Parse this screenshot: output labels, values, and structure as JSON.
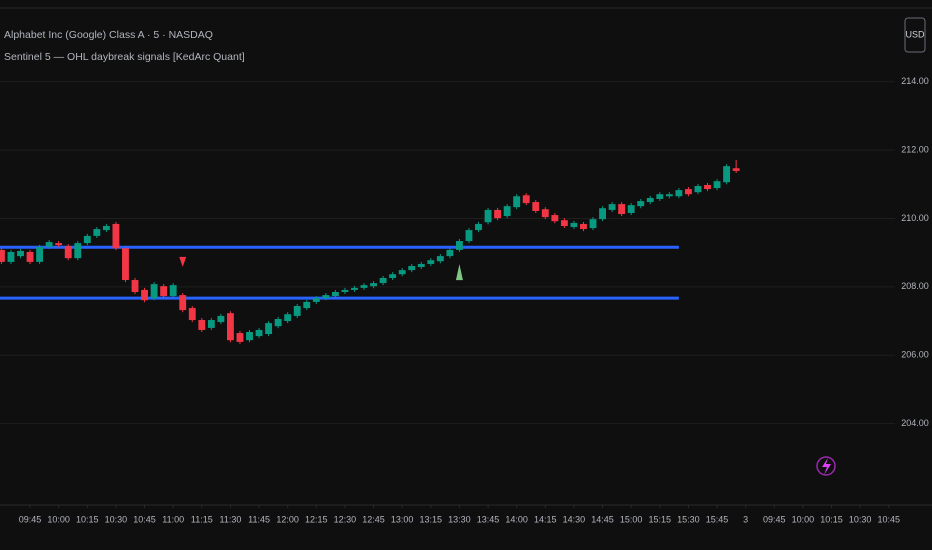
{
  "header": {
    "symbol": "Alphabet Inc (Google) Class A · 5 · NASDAQ",
    "indicator": "Sentinel 5 — OHL daybreak signals [KedArc Quant]",
    "currency": "USD"
  },
  "chart_data": {
    "type": "candlestick",
    "x": [
      0,
      1,
      2,
      3,
      4,
      5,
      6,
      7,
      8,
      9,
      10,
      11,
      12,
      13,
      14,
      15,
      16,
      17,
      18,
      19,
      20,
      21,
      22,
      23,
      24,
      25,
      26,
      27,
      28,
      29,
      30,
      31,
      32,
      33,
      34,
      35,
      36,
      37,
      38,
      39,
      40,
      41,
      42,
      43,
      44,
      45,
      46,
      47,
      48,
      49,
      50,
      51,
      52,
      53,
      54,
      55,
      56,
      57,
      58,
      59,
      60,
      61,
      62,
      63,
      64,
      65,
      66,
      67,
      68,
      69,
      70,
      71,
      72,
      73,
      74,
      75,
      76,
      77
    ],
    "open": [
      209.08,
      208.73,
      208.9,
      209.02,
      208.73,
      209.17,
      209.28,
      209.19,
      208.84,
      209.28,
      209.49,
      209.66,
      209.84,
      209.13,
      208.2,
      207.91,
      207.67,
      208.02,
      207.73,
      207.76,
      207.38,
      207.03,
      206.8,
      206.97,
      207.23,
      206.65,
      206.44,
      206.56,
      206.62,
      206.85,
      207.0,
      207.15,
      207.38,
      207.56,
      207.67,
      207.73,
      207.85,
      207.91,
      207.97,
      208.02,
      208.11,
      208.26,
      208.37,
      208.49,
      208.58,
      208.67,
      208.75,
      208.9,
      209.08,
      209.34,
      209.66,
      209.89,
      210.25,
      210.07,
      210.33,
      210.68,
      210.48,
      210.27,
      210.1,
      209.95,
      209.75,
      209.84,
      209.72,
      209.98,
      210.25,
      210.42,
      210.16,
      210.36,
      210.48,
      210.57,
      210.65,
      210.65,
      210.86,
      210.77,
      210.98,
      210.89,
      211.06,
      211.47
    ],
    "high": [
      209.14,
      209.08,
      209.11,
      209.08,
      209.23,
      209.37,
      209.34,
      209.25,
      209.34,
      209.55,
      209.75,
      209.84,
      209.9,
      209.19,
      208.26,
      207.97,
      208.14,
      208.08,
      208.11,
      207.82,
      207.44,
      207.09,
      207.09,
      207.21,
      207.29,
      206.71,
      206.74,
      206.8,
      207.0,
      207.12,
      207.26,
      207.5,
      207.62,
      207.73,
      207.82,
      207.91,
      207.97,
      208.03,
      208.11,
      208.17,
      208.32,
      208.43,
      208.55,
      208.67,
      208.73,
      208.84,
      208.96,
      209.14,
      209.4,
      209.72,
      209.9,
      210.31,
      210.31,
      210.42,
      210.71,
      210.74,
      210.54,
      210.33,
      210.16,
      210.01,
      209.93,
      209.9,
      210.04,
      210.36,
      210.48,
      210.48,
      210.45,
      210.57,
      210.66,
      210.77,
      210.77,
      210.89,
      210.92,
      211.01,
      211.04,
      211.15,
      211.59,
      211.71
    ],
    "low": [
      208.67,
      208.67,
      208.84,
      208.67,
      208.67,
      209.11,
      209.16,
      208.78,
      208.78,
      209.22,
      209.43,
      209.6,
      209.07,
      208.14,
      207.79,
      207.55,
      207.61,
      207.67,
      207.67,
      207.26,
      206.97,
      206.68,
      206.74,
      206.91,
      206.38,
      206.33,
      206.38,
      206.5,
      206.56,
      206.79,
      206.94,
      207.09,
      207.32,
      207.5,
      207.61,
      207.67,
      207.79,
      207.85,
      207.91,
      207.96,
      208.05,
      208.2,
      208.31,
      208.43,
      208.52,
      208.61,
      208.69,
      208.84,
      209.02,
      209.28,
      209.6,
      209.83,
      209.95,
      210.01,
      210.27,
      210.39,
      210.16,
      209.98,
      209.86,
      209.72,
      209.69,
      209.63,
      209.66,
      209.92,
      210.19,
      210.07,
      210.1,
      210.3,
      210.42,
      210.51,
      210.59,
      210.59,
      210.65,
      210.71,
      210.8,
      210.83,
      211.0,
      211.33
    ],
    "close": [
      208.73,
      209.02,
      209.05,
      208.73,
      209.17,
      209.31,
      209.22,
      208.84,
      209.28,
      209.49,
      209.69,
      209.78,
      209.13,
      208.2,
      207.85,
      207.61,
      208.08,
      207.73,
      208.05,
      207.32,
      207.03,
      206.74,
      207.03,
      207.15,
      206.44,
      206.39,
      206.68,
      206.74,
      206.94,
      207.06,
      207.2,
      207.44,
      207.56,
      207.67,
      207.76,
      207.85,
      207.91,
      207.97,
      208.05,
      208.11,
      208.26,
      208.37,
      208.49,
      208.61,
      208.67,
      208.78,
      208.9,
      209.08,
      209.34,
      209.66,
      209.84,
      210.25,
      210.01,
      210.36,
      210.65,
      210.45,
      210.22,
      210.04,
      209.92,
      209.78,
      209.87,
      209.69,
      209.98,
      210.3,
      210.42,
      210.13,
      210.39,
      210.51,
      210.6,
      210.71,
      210.71,
      210.83,
      210.71,
      210.95,
      210.86,
      211.09,
      211.53,
      211.39
    ],
    "up_color": "#089981",
    "down_color": "#f23645",
    "levels": [
      {
        "value": 209.16,
        "x_end": 71
      },
      {
        "value": 207.67,
        "x_end": 71
      }
    ],
    "level_color": "#2962ff",
    "sell_signals": [
      {
        "x": 19,
        "y": 208.73
      }
    ],
    "sell_color": "#f23645",
    "buy_signals": [
      {
        "x": 48,
        "y": 208.43
      }
    ],
    "buy_color": "#81c784",
    "xlim": [
      -0.15,
      93.65
    ],
    "xticks": [
      {
        "value": 3,
        "label": "09:45"
      },
      {
        "value": 6,
        "label": "10:00"
      },
      {
        "value": 9,
        "label": "10:15"
      },
      {
        "value": 12,
        "label": "10:30"
      },
      {
        "value": 15,
        "label": "10:45"
      },
      {
        "value": 18,
        "label": "11:00"
      },
      {
        "value": 21,
        "label": "11:15"
      },
      {
        "value": 24,
        "label": "11:30"
      },
      {
        "value": 27,
        "label": "11:45"
      },
      {
        "value": 30,
        "label": "12:00"
      },
      {
        "value": 33,
        "label": "12:15"
      },
      {
        "value": 36,
        "label": "12:30"
      },
      {
        "value": 39,
        "label": "12:45"
      },
      {
        "value": 42,
        "label": "13:00"
      },
      {
        "value": 45,
        "label": "13:15"
      },
      {
        "value": 48,
        "label": "13:30"
      },
      {
        "value": 51,
        "label": "13:45"
      },
      {
        "value": 54,
        "label": "14:00"
      },
      {
        "value": 57,
        "label": "14:15"
      },
      {
        "value": 60,
        "label": "14:30"
      },
      {
        "value": 63,
        "label": "14:45"
      },
      {
        "value": 66,
        "label": "15:00"
      },
      {
        "value": 69,
        "label": "15:15"
      },
      {
        "value": 72,
        "label": "15:30"
      },
      {
        "value": 75,
        "label": "15:45"
      },
      {
        "value": 78,
        "label": "3"
      },
      {
        "value": 81,
        "label": "09:45"
      },
      {
        "value": 84,
        "label": "10:00"
      },
      {
        "value": 87,
        "label": "10:15"
      },
      {
        "value": 90,
        "label": "10:30"
      },
      {
        "value": 93,
        "label": "10:45"
      }
    ],
    "ylim": [
      201.62,
      216.39
    ],
    "yticks": [
      {
        "value": 204,
        "label": "204.00"
      },
      {
        "value": 206,
        "label": "206.00"
      },
      {
        "value": 208,
        "label": "208.00"
      },
      {
        "value": 210,
        "label": "210.00"
      },
      {
        "value": 212,
        "label": "212.00"
      },
      {
        "value": 214,
        "label": "214.00"
      }
    ],
    "grid": true
  }
}
